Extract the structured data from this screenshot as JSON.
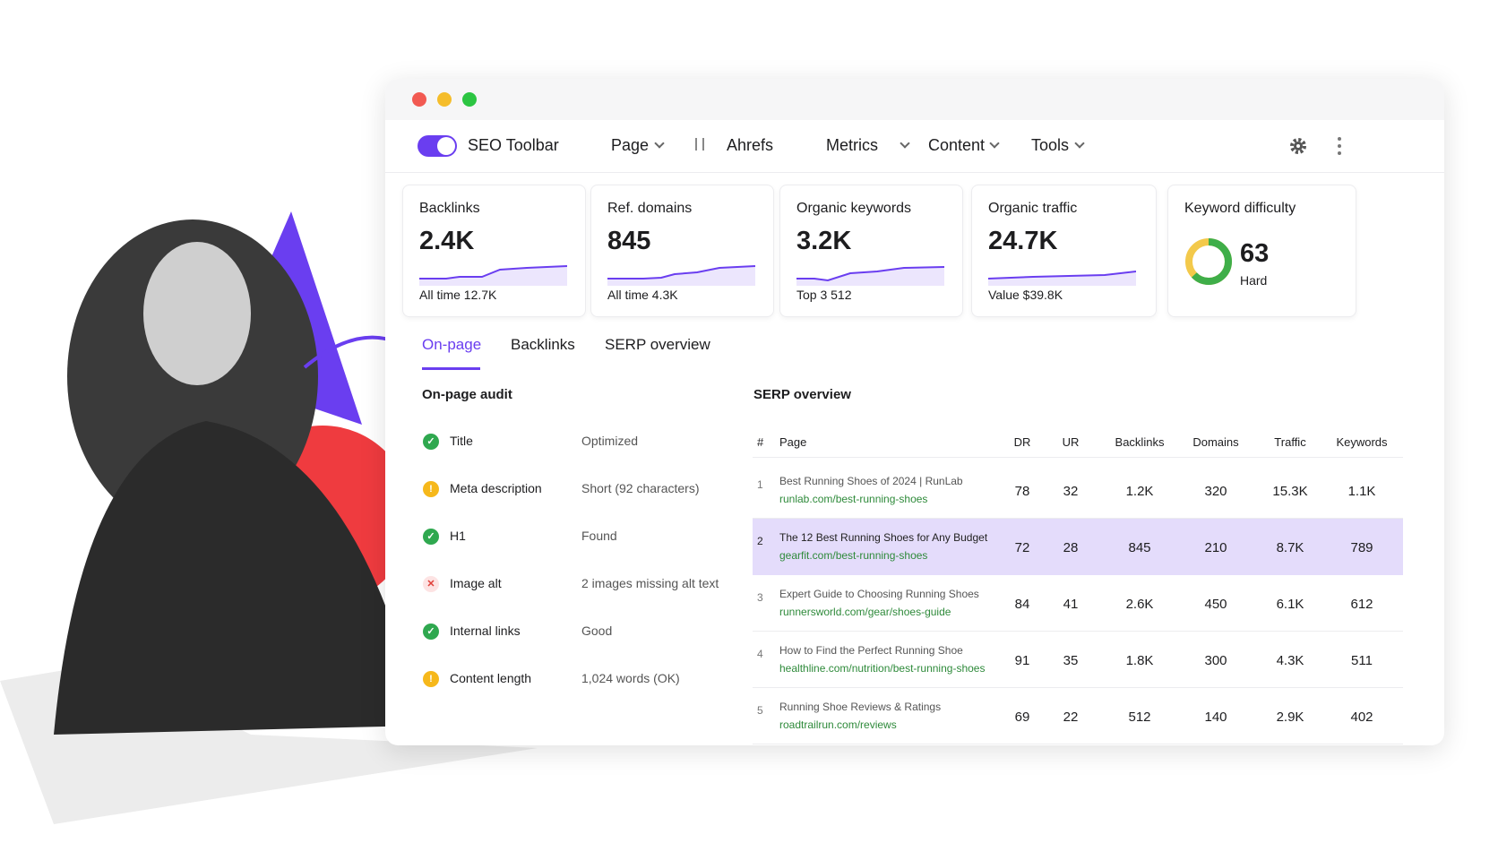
{
  "toolbar": {
    "name": "SEO Toolbar",
    "menu": [
      "Page",
      "Ahrefs",
      "Metrics",
      "Content",
      "Tools"
    ]
  },
  "metrics": [
    {
      "label": "Backlinks",
      "value": "2.4K",
      "note": "All time 12.7K"
    },
    {
      "label": "Ref. domains",
      "value": "845",
      "note": "All time 4.3K"
    },
    {
      "label": "Organic keywords",
      "value": "3.2K",
      "note": "Top 3 512"
    },
    {
      "label": "Organic traffic",
      "value": "24.7K",
      "note": "Value $39.8K"
    },
    {
      "label": "Keyword difficulty",
      "value": 63,
      "note": "Hard"
    }
  ],
  "tabs": [
    "On-page",
    "Backlinks",
    "SERP overview"
  ],
  "audit": {
    "title": "On-page audit",
    "rows": [
      {
        "label": "Title",
        "value": "Optimized",
        "status": "ok"
      },
      {
        "label": "Meta description",
        "value": "Short (92 characters)",
        "status": "warn"
      },
      {
        "label": "H1",
        "value": "Found",
        "status": "ok"
      },
      {
        "label": "Image alt",
        "value": "2 images missing alt text",
        "status": "error"
      },
      {
        "label": "Internal links",
        "value": "Good",
        "status": "ok"
      },
      {
        "label": "Content length",
        "value": "1,024 words (OK)",
        "status": "warn"
      }
    ]
  },
  "serp": {
    "title": "SERP overview",
    "columns": [
      "#",
      "Page",
      "DR",
      "UR",
      "Backlinks",
      "Domains",
      "Traffic",
      "Keywords"
    ],
    "rows": [
      [
        "1",
        "Best Running Shoes of 2024 | RunLab",
        "runlab.com/best-running-shoes",
        "78",
        "32",
        "1.2K",
        "320",
        "15.3K",
        "1.1K"
      ],
      [
        "2",
        "The 12 Best Running Shoes for Any Budget",
        "gearfit.com/best-running-shoes",
        "72",
        "28",
        "845",
        "210",
        "8.7K",
        "789"
      ],
      [
        "3",
        "Expert Guide to Choosing Running Shoes",
        "runnersworld.com/gear/shoes-guide",
        "84",
        "41",
        "2.6K",
        "450",
        "6.1K",
        "612"
      ],
      [
        "4",
        "How to Find the Perfect Running Shoe",
        "healthline.com/nutrition/best-running-shoes",
        "91",
        "35",
        "1.8K",
        "300",
        "4.3K",
        "511"
      ],
      [
        "5",
        "Running Shoe Reviews & Ratings",
        "roadtrailrun.com/reviews",
        "69",
        "22",
        "512",
        "140",
        "2.9K",
        "402"
      ]
    ],
    "highlight": 1
  }
}
